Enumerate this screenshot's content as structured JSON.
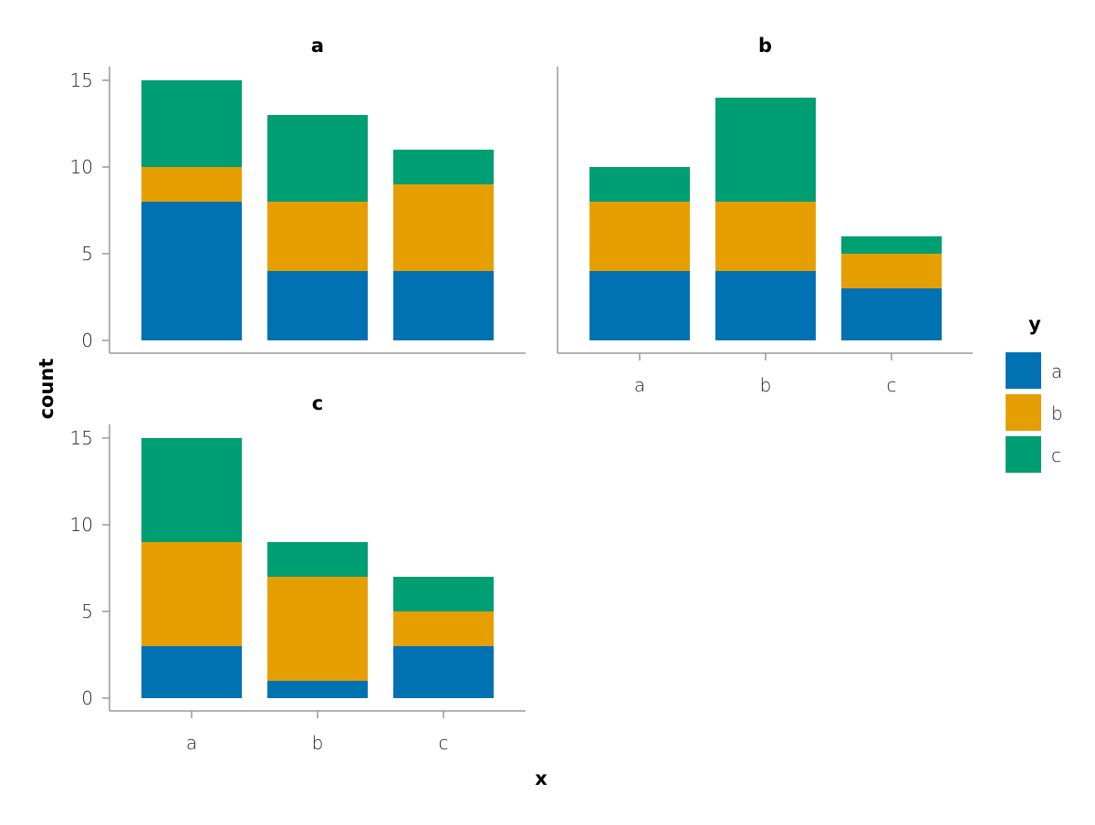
{
  "chart_data": {
    "type": "bar",
    "stacked": true,
    "xlabel": "x",
    "ylabel": "count",
    "ylim": [
      0,
      15
    ],
    "yticks": [
      0,
      5,
      10,
      15
    ],
    "categories": [
      "a",
      "b",
      "c"
    ],
    "legend": {
      "title": "y",
      "placement": "right",
      "entries": [
        "a",
        "b",
        "c"
      ]
    },
    "colors": {
      "a": "#0072b2",
      "b": "#e69f00",
      "c": "#009e73"
    },
    "panels": [
      {
        "title": "a",
        "series": [
          {
            "name": "a",
            "values": [
              8,
              4,
              4
            ]
          },
          {
            "name": "b",
            "values": [
              2,
              4,
              5
            ]
          },
          {
            "name": "c",
            "values": [
              5,
              5,
              2
            ]
          }
        ]
      },
      {
        "title": "b",
        "series": [
          {
            "name": "a",
            "values": [
              4,
              4,
              3
            ]
          },
          {
            "name": "b",
            "values": [
              4,
              4,
              2
            ]
          },
          {
            "name": "c",
            "values": [
              2,
              6,
              1
            ]
          }
        ]
      },
      {
        "title": "c",
        "series": [
          {
            "name": "a",
            "values": [
              3,
              1,
              3
            ]
          },
          {
            "name": "b",
            "values": [
              6,
              6,
              2
            ]
          },
          {
            "name": "c",
            "values": [
              6,
              2,
              2
            ]
          }
        ]
      }
    ]
  }
}
